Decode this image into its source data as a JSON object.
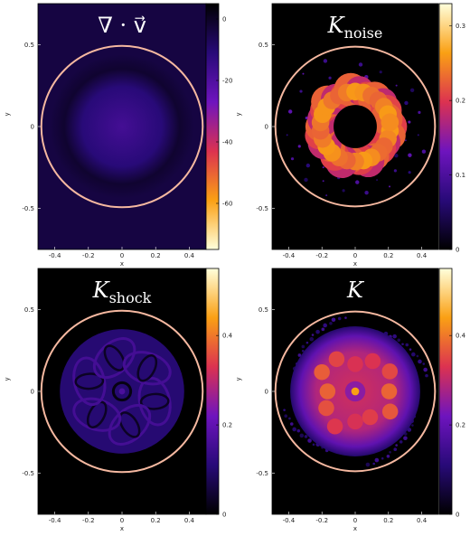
{
  "chart_data": [
    {
      "type": "heatmap",
      "title": "∇ · v⃗",
      "title_main": "∇ · v⃗",
      "title_sub": "",
      "xlabel": "x",
      "ylabel": "y",
      "xlim": [
        -0.5,
        0.5
      ],
      "ylim": [
        -0.75,
        0.75
      ],
      "x_ticks": [
        "-0.4",
        "-0.2",
        "0",
        "0.2",
        "0.4"
      ],
      "y_ticks": [
        "0.5",
        "0",
        "-0.5"
      ],
      "colorbar": {
        "min": -75,
        "max": 5,
        "ticks": [
          "0",
          "-20",
          "-40",
          "-60"
        ],
        "colormap": "gnuplot-reversed"
      },
      "circle_radius": 0.48,
      "pattern": "blob",
      "pattern_params": {
        "r_inner": 0,
        "r_outer": 0.26,
        "peak_value": 0.35
      }
    },
    {
      "type": "heatmap",
      "title": "K noise",
      "title_main": "K",
      "title_sub": "noise",
      "xlabel": "x",
      "ylabel": "y",
      "xlim": [
        -0.5,
        0.5
      ],
      "ylim": [
        -0.75,
        0.75
      ],
      "x_ticks": [
        "-0.4",
        "-0.2",
        "0",
        "0.2",
        "0.4"
      ],
      "y_ticks": [
        "0.5",
        "0",
        "-0.5"
      ],
      "colorbar": {
        "min": 0,
        "max": 0.33,
        "ticks": [
          "0.3",
          "0.2",
          "0.1",
          "0"
        ],
        "colormap": "gnuplot"
      },
      "circle_radius": 0.48,
      "pattern": "ring",
      "pattern_params": {
        "r_inner": 0.13,
        "r_outer": 0.29,
        "peak_value": 0.2
      }
    },
    {
      "type": "heatmap",
      "title": "K shock",
      "title_main": "K",
      "title_sub": "shock",
      "xlabel": "x",
      "ylabel": "y",
      "xlim": [
        -0.5,
        0.5
      ],
      "ylim": [
        -0.75,
        0.75
      ],
      "x_ticks": [
        "-0.4",
        "-0.2",
        "0",
        "0.2",
        "0.4"
      ],
      "y_ticks": [
        "0.5",
        "0",
        "-0.5"
      ],
      "colorbar": {
        "min": 0,
        "max": 0.55,
        "ticks": [
          "0.4",
          "0.2",
          "0"
        ],
        "colormap": "gnuplot"
      },
      "circle_radius": 0.48,
      "pattern": "petals",
      "pattern_params": {
        "r_inner": 0,
        "r_outer": 0.37,
        "peak_value": 0.12
      }
    },
    {
      "type": "heatmap",
      "title": "K",
      "title_main": "K",
      "title_sub": "",
      "xlabel": "x",
      "ylabel": "y",
      "xlim": [
        -0.5,
        0.5
      ],
      "ylim": [
        -0.75,
        0.75
      ],
      "x_ticks": [
        "-0.4",
        "-0.2",
        "0",
        "0.2",
        "0.4"
      ],
      "y_ticks": [
        "0.5",
        "0",
        "-0.5"
      ],
      "colorbar": {
        "min": 0,
        "max": 0.55,
        "ticks": [
          "0.4",
          "0.2",
          "0"
        ],
        "colormap": "gnuplot"
      },
      "circle_radius": 0.48,
      "pattern": "combined",
      "pattern_params": {
        "r_inner": 0,
        "r_outer": 0.34,
        "peak_value": 0.3
      }
    }
  ],
  "colors": {
    "frame": "#000000",
    "circle": "#f5b8a0",
    "title_text": "#ffffff",
    "tick_text": "#222222"
  }
}
